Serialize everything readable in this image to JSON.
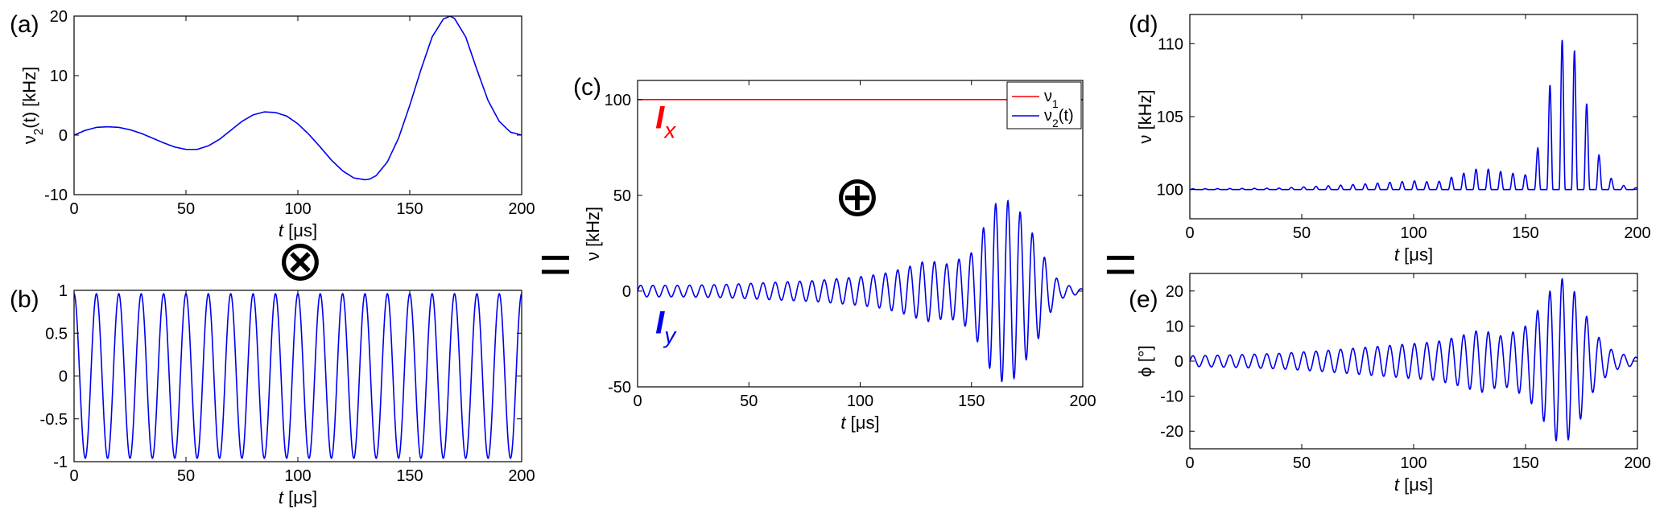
{
  "operators": {
    "otimes": "⊗",
    "oplus": "⊕",
    "equals": "="
  },
  "colors": {
    "blue": "#0000ee",
    "red": "#ff0000"
  },
  "chart_data": [
    {
      "id": "a",
      "panel_label": "(a)",
      "type": "line",
      "xlabel": "t [μs]",
      "ylabel": "ν2(t) [kHz]",
      "xlim": [
        0,
        200
      ],
      "ylim": [
        -10,
        20
      ],
      "xticks": [
        0,
        50,
        100,
        150,
        200
      ],
      "yticks": [
        -10,
        0,
        10,
        20
      ],
      "series": [
        {
          "color": "#0000ee",
          "x": [
            0,
            5,
            10,
            15,
            20,
            25,
            30,
            35,
            40,
            45,
            50,
            55,
            60,
            65,
            70,
            75,
            80,
            85,
            90,
            95,
            100,
            105,
            110,
            115,
            120,
            125,
            130,
            132,
            135,
            140,
            145,
            150,
            155,
            160,
            165,
            168,
            170,
            175,
            180,
            185,
            190,
            195,
            200
          ],
          "y": [
            0,
            0.8,
            1.3,
            1.4,
            1.3,
            0.9,
            0.3,
            -0.5,
            -1.3,
            -2.0,
            -2.4,
            -2.4,
            -1.8,
            -0.7,
            0.8,
            2.3,
            3.4,
            3.9,
            3.8,
            3.2,
            1.9,
            0.1,
            -2.0,
            -4.2,
            -6.0,
            -7.2,
            -7.5,
            -7.4,
            -6.8,
            -4.5,
            -0.5,
            5.0,
            11.0,
            16.5,
            19.5,
            20.0,
            19.6,
            16.5,
            11.0,
            5.8,
            2.3,
            0.5,
            0
          ]
        }
      ]
    },
    {
      "id": "b",
      "panel_label": "(b)",
      "type": "line",
      "xlabel": "t [μs]",
      "ylabel": "",
      "xlim": [
        0,
        200
      ],
      "ylim": [
        -1,
        1
      ],
      "xticks": [
        0,
        50,
        100,
        150,
        200
      ],
      "yticks": [
        -1,
        -0.5,
        0,
        0.5,
        1
      ],
      "function": {
        "kind": "cosine",
        "period_us": 10,
        "amplitude": 0.96
      },
      "series": [
        {
          "color": "#0000ee"
        }
      ]
    },
    {
      "id": "c",
      "panel_label": "(c)",
      "type": "line",
      "xlabel": "t [μs]",
      "ylabel": "ν [kHz]",
      "xlim": [
        0,
        200
      ],
      "ylim": [
        -50,
        110
      ],
      "xticks": [
        0,
        50,
        100,
        150,
        200
      ],
      "yticks": [
        -50,
        0,
        50,
        100
      ],
      "legend": {
        "location": "top-right",
        "entries": [
          {
            "name": "ν1",
            "color": "#ff0000"
          },
          {
            "name": "ν2(t)",
            "color": "#0000ee"
          }
        ]
      },
      "annotations": [
        {
          "text": "I",
          "sub": "x",
          "color": "#ff0000",
          "at": [
            8,
            85
          ]
        },
        {
          "text": "I",
          "sub": "y",
          "color": "#0000ee",
          "at": [
            8,
            -22
          ]
        }
      ],
      "series": [
        {
          "name": "ν1",
          "color": "#ff0000",
          "x": [
            0,
            200
          ],
          "y": [
            100,
            100
          ]
        },
        {
          "name": "ν2(t)",
          "color": "#0000ee",
          "generated": "oscillation with period 5.5 μs",
          "envelope_x": [
            0,
            20,
            40,
            60,
            80,
            100,
            110,
            120,
            130,
            140,
            150,
            155,
            160,
            165,
            170,
            175,
            180,
            185,
            190,
            200
          ],
          "envelope_y": [
            3,
            3,
            3.5,
            4.5,
            5.5,
            7.5,
            9,
            12,
            16,
            14,
            20,
            32,
            45,
            48,
            45,
            35,
            25,
            12,
            4,
            1
          ]
        }
      ]
    },
    {
      "id": "d",
      "panel_label": "(d)",
      "type": "line",
      "xlabel": "t [μs]",
      "ylabel": "ν [kHz]",
      "xlim": [
        0,
        200
      ],
      "ylim": [
        98,
        112
      ],
      "xticks": [
        0,
        50,
        100,
        150,
        200
      ],
      "yticks": [
        100,
        105,
        110
      ],
      "series": [
        {
          "color": "#0000ee",
          "baseline": 100,
          "generated": "positive oscillation bursts, period 5.5 μs",
          "envelope_x": [
            0,
            40,
            80,
            100,
            110,
            120,
            130,
            140,
            150,
            155,
            160,
            165,
            170,
            175,
            180,
            185,
            190,
            200
          ],
          "envelope_y": [
            0.05,
            0.1,
            0.4,
            0.6,
            0.5,
            1.0,
            1.5,
            1.2,
            1.0,
            2.5,
            6.5,
            10.2,
            10.4,
            8,
            3.5,
            1.5,
            0.4,
            0.1
          ]
        }
      ]
    },
    {
      "id": "e",
      "panel_label": "(e)",
      "type": "line",
      "xlabel": "t [μs]",
      "ylabel": "ϕ [°]",
      "xlim": [
        0,
        200
      ],
      "ylim": [
        -25,
        25
      ],
      "xticks": [
        0,
        50,
        100,
        150,
        200
      ],
      "yticks": [
        -20,
        -10,
        0,
        10,
        20
      ],
      "series": [
        {
          "color": "#0000ee",
          "generated": "oscillation with period 5.5 μs",
          "envelope_x": [
            0,
            20,
            40,
            60,
            80,
            100,
            110,
            120,
            130,
            140,
            150,
            155,
            160,
            165,
            170,
            175,
            180,
            185,
            190,
            200
          ],
          "envelope_y": [
            1.5,
            1.8,
            2.2,
            3,
            4,
            5,
            5.5,
            7,
            9,
            7,
            10,
            14,
            19,
            24,
            22,
            16,
            9,
            5,
            2.5,
            1
          ]
        }
      ]
    }
  ]
}
